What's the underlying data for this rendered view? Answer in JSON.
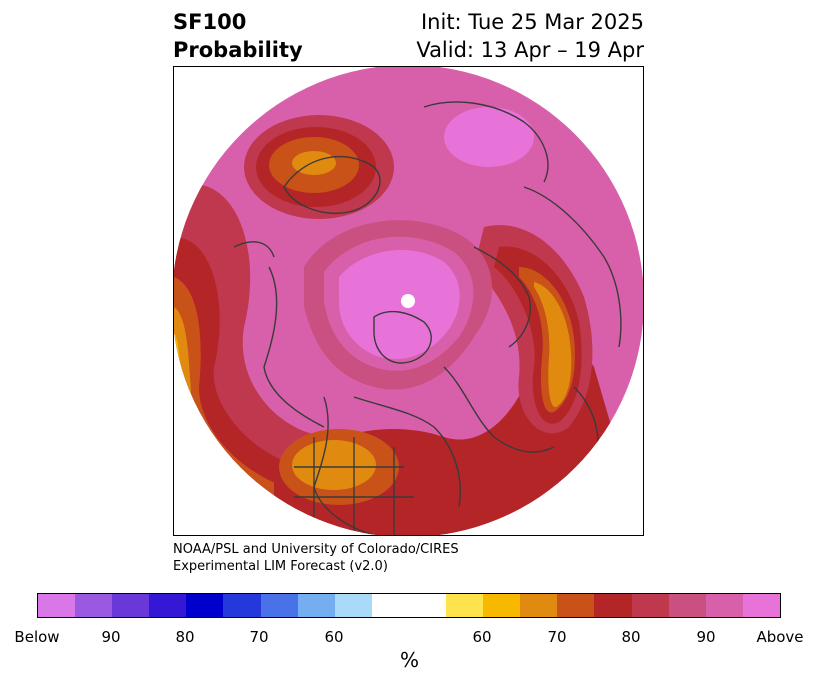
{
  "title": {
    "product": "SF100",
    "subtitle": "Probability",
    "init": "Init: Tue 25 Mar 2025",
    "valid": "Valid: 13 Apr – 19 Apr"
  },
  "credit": {
    "line1": "NOAA/PSL and University of Colorado/CIRES",
    "line2": "Experimental LIM Forecast (v2.0)"
  },
  "colorbar": {
    "unit_label": "%",
    "tick_labels": [
      "Below",
      "90",
      "80",
      "70",
      "60",
      "60",
      "70",
      "80",
      "90",
      "Above"
    ],
    "colors": [
      "#d977e8",
      "#9a59e0",
      "#6a38d8",
      "#3518d6",
      "#0000cd",
      "#2538dc",
      "#4a72e8",
      "#74aef0",
      "#a9daf7",
      "#ffffff",
      "#ffe34d",
      "#f6b900",
      "#e08a10",
      "#c85218",
      "#b42528",
      "#c0384e",
      "#cb5082",
      "#d860aa",
      "#e873d8"
    ]
  },
  "map": {
    "projection": "north-polar-stereographic",
    "palette": {
      "above_90": "#e873d8",
      "p90": "#d860aa",
      "p85": "#cb5082",
      "p80": "#c0384e",
      "p75": "#b42528",
      "p70": "#c85218",
      "p65": "#e08a10",
      "p60": "#f6b900",
      "p55": "#ffe34d",
      "coastline": "#3a3a3a"
    }
  }
}
